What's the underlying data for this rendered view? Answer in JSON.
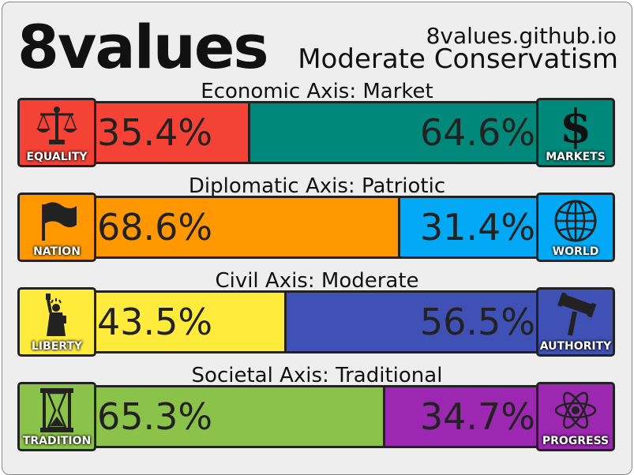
{
  "header": {
    "logo": "8values",
    "site": "8values.github.io",
    "ideology": "Moderate Conservatism"
  },
  "axes": [
    {
      "title": "Economic Axis: Market",
      "left": {
        "label": "EQUALITY",
        "icon": "scales-icon",
        "color": "#f44336",
        "value": 35.4,
        "value_text": "35.4%"
      },
      "right": {
        "label": "MARKETS",
        "icon": "dollar-icon",
        "color": "#00897b",
        "value": 64.6,
        "value_text": "64.6%"
      }
    },
    {
      "title": "Diplomatic Axis: Patriotic",
      "left": {
        "label": "NATION",
        "icon": "flag-icon",
        "color": "#ff9800",
        "value": 68.6,
        "value_text": "68.6%"
      },
      "right": {
        "label": "WORLD",
        "icon": "globe-icon",
        "color": "#03a9f4",
        "value": 31.4,
        "value_text": "31.4%"
      }
    },
    {
      "title": "Civil Axis: Moderate",
      "left": {
        "label": "LIBERTY",
        "icon": "statue-of-liberty-icon",
        "color": "#ffeb3b",
        "value": 43.5,
        "value_text": "43.5%"
      },
      "right": {
        "label": "AUTHORITY",
        "icon": "gavel-icon",
        "color": "#3f51b5",
        "value": 56.5,
        "value_text": "56.5%"
      }
    },
    {
      "title": "Societal Axis: Traditional",
      "left": {
        "label": "TRADITION",
        "icon": "hourglass-icon",
        "color": "#8bc34a",
        "value": 65.3,
        "value_text": "65.3%"
      },
      "right": {
        "label": "PROGRESS",
        "icon": "atom-icon",
        "color": "#9c27b0",
        "value": 34.7,
        "value_text": "34.7%"
      }
    }
  ]
}
